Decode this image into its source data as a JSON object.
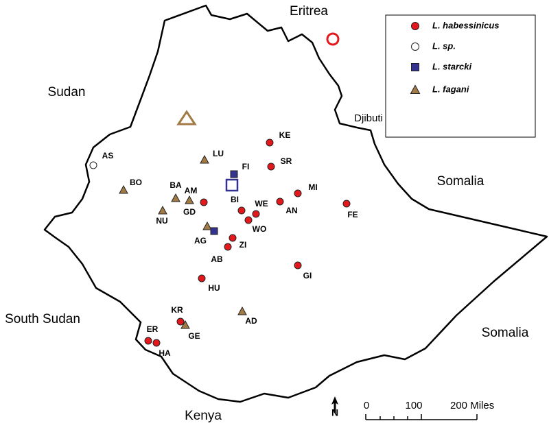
{
  "countries": [
    "Eritrea",
    "Sudan",
    "Djibuti",
    "Somalia",
    "Somalia",
    "South Sudan",
    "Kenya"
  ],
  "legend": [
    {
      "label": "L. habessinicus",
      "marker": "circle",
      "color": "#e3181c",
      "sites": [
        "KE",
        "SR",
        "MI",
        "AN",
        "FE",
        "BI",
        "WE",
        "WO",
        "AM",
        "ZI",
        "AB",
        "GI",
        "HU",
        "KR",
        "ER",
        "HA"
      ]
    },
    {
      "label": "L. sp.",
      "marker": "circle",
      "color": "#ffffff",
      "sites": [
        "AS"
      ]
    },
    {
      "label": "L. starcki",
      "marker": "square",
      "color": "#33338f",
      "sites": [
        "FI"
      ]
    },
    {
      "label": "L. fagani",
      "marker": "triangle",
      "color": "#a27a45",
      "sites": [
        "LU",
        "BO",
        "BA",
        "GD",
        "NU",
        "AG",
        "AD",
        "GE"
      ]
    }
  ],
  "scale": [
    "0",
    "100",
    "200 Miles"
  ],
  "north": "N"
}
